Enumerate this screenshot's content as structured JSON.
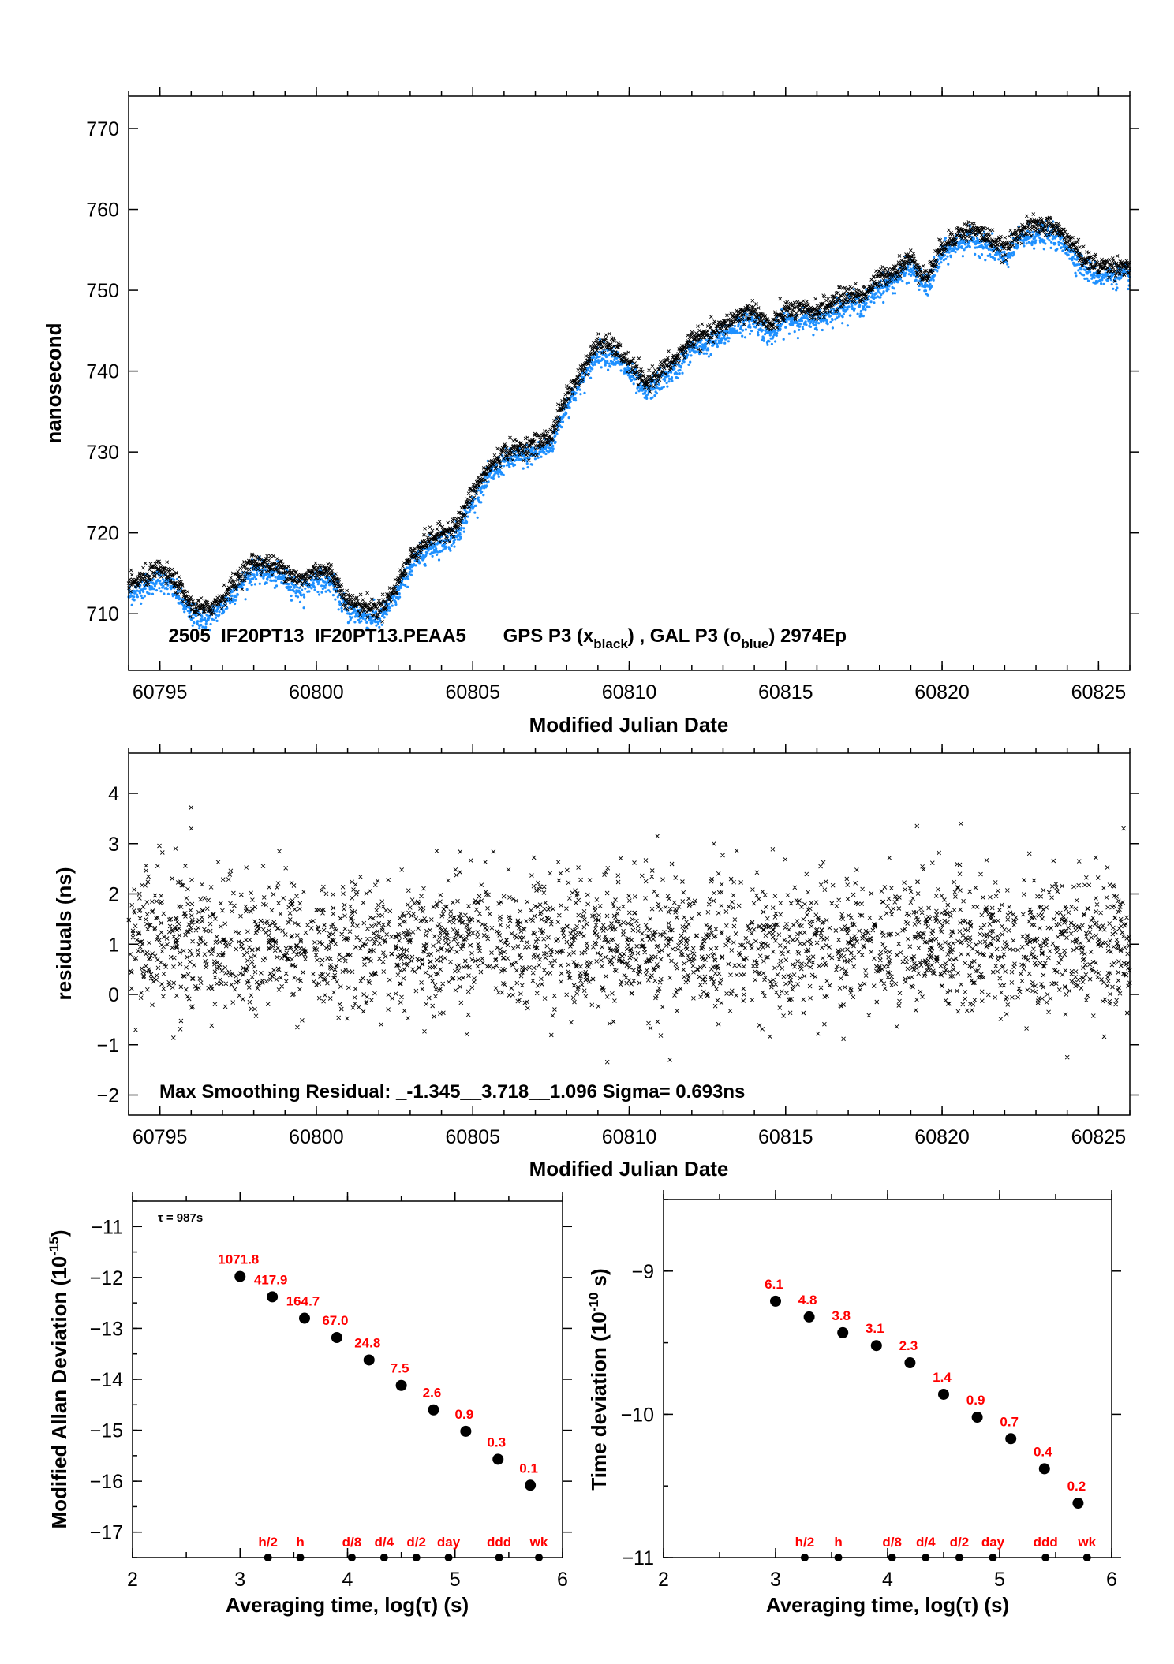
{
  "chart_data": [
    {
      "type": "scatter",
      "name": "phase",
      "xlabel": "Modified Julian Date",
      "ylabel": "nanosecond",
      "xlim": [
        60794,
        60826
      ],
      "ylim": [
        703,
        774
      ],
      "xticks": [
        "60795",
        "60800",
        "60805",
        "60810",
        "60815",
        "60820",
        "60825"
      ],
      "yticks": [
        "710",
        "720",
        "730",
        "740",
        "750",
        "760",
        "770"
      ],
      "annotation": {
        "id": "_2505_IF20PT13_IF20PT13.PEAA5",
        "gps": "GPS P3 (x",
        "gps_sub": "black",
        "mid": ") ,  GAL P3 (o",
        "gal_sub": "blue",
        "tail": ")  2974Ep"
      },
      "colors": {
        "gps": "#000000",
        "gal": "#1e90ff"
      },
      "trend_x": [
        60794,
        60794.5,
        60795,
        60795.5,
        60796,
        60796.5,
        60797,
        60797.5,
        60798,
        60798.5,
        60799,
        60799.5,
        60800,
        60800.5,
        60801,
        60801.5,
        60802,
        60802.5,
        60803,
        60803.5,
        60804,
        60804.5,
        60805,
        60805.5,
        60806,
        60806.5,
        60807,
        60807.5,
        60808,
        60808.5,
        60809,
        60809.5,
        60810,
        60810.5,
        60811,
        60811.5,
        60812,
        60812.5,
        60813,
        60813.5,
        60814,
        60814.5,
        60815,
        60815.5,
        60816,
        60816.5,
        60817,
        60817.5,
        60818,
        60818.5,
        60819,
        60819.5,
        60820,
        60820.5,
        60821,
        60821.5,
        60822,
        60822.5,
        60823,
        60823.5,
        60824,
        60824.5,
        60825,
        60825.5,
        60826
      ],
      "trend_y": [
        713.5,
        714.5,
        715.5,
        714,
        711,
        710.5,
        712,
        714.5,
        716.5,
        716,
        715.5,
        714,
        715.5,
        715,
        711.5,
        711,
        710.5,
        713,
        717,
        719,
        720,
        721,
        725,
        728,
        730,
        730.5,
        731,
        732,
        737,
        740,
        743.5,
        743,
        741,
        738.5,
        740,
        741.5,
        744,
        744.5,
        745.5,
        747,
        747.5,
        745.5,
        747.5,
        747.5,
        747.5,
        748.5,
        749.5,
        749.5,
        751.5,
        752.5,
        754,
        751.5,
        755.5,
        757,
        757.5,
        756.5,
        755,
        757.5,
        758,
        758,
        756.5,
        754,
        753,
        753,
        753
      ],
      "gal_offset": -1.2
    },
    {
      "type": "scatter",
      "name": "residuals",
      "xlabel": "Modified Julian Date",
      "ylabel": "residuals (ns)",
      "xlim": [
        60794,
        60826
      ],
      "ylim": [
        -2.4,
        4.8
      ],
      "xticks": [
        "60795",
        "60800",
        "60805",
        "60810",
        "60815",
        "60820",
        "60825"
      ],
      "yticks": [
        "−2",
        "−1",
        "0",
        "1",
        "2",
        "3",
        "4"
      ],
      "annotation": "Max Smoothing Residual: _-1.345__3.718__1.096  Sigma= 0.693ns",
      "mean": 1.0,
      "sigma": 0.693,
      "min": -1.345,
      "max": 3.718,
      "outliers": [
        [
          60796,
          3.718
        ],
        [
          60796,
          3.3
        ],
        [
          60795.5,
          2.9
        ],
        [
          60809.3,
          -1.345
        ],
        [
          60811.3,
          -1.3
        ],
        [
          60824,
          -1.25
        ],
        [
          60810.9,
          3.15
        ],
        [
          60819.2,
          3.35
        ],
        [
          60820.6,
          3.4
        ],
        [
          60825.8,
          3.3
        ]
      ]
    },
    {
      "type": "scatter",
      "name": "modified-allan-deviation",
      "xlabel": "Averaging time, log(τ) (s)",
      "ylabel": "Modified Allan Deviation (10",
      "ylabel_sup": "-15",
      "ylabel_tail": ")",
      "xlim": [
        2,
        6
      ],
      "ylim": [
        -17.5,
        -10.5
      ],
      "xticks": [
        "2",
        "3",
        "4",
        "5",
        "6"
      ],
      "yticks": [
        "−11",
        "−12",
        "−13",
        "−14",
        "−15",
        "−16",
        "−17"
      ],
      "tau_note": "τ = 987s",
      "x": [
        3.0,
        3.3,
        3.6,
        3.9,
        4.2,
        4.5,
        4.8,
        5.1,
        5.4,
        5.7
      ],
      "y": [
        -11.98,
        -12.38,
        -12.8,
        -13.18,
        -13.62,
        -14.12,
        -14.6,
        -15.02,
        -15.57,
        -16.08
      ],
      "labels": [
        "1071.8",
        "417.9",
        "164.7",
        "67.0",
        "24.8",
        "7.5",
        "2.6",
        "0.9",
        "0.3",
        "0.1"
      ],
      "markers": {
        "x": [
          3.26,
          3.56,
          4.04,
          4.34,
          4.64,
          4.94,
          5.41,
          5.78
        ],
        "labels": [
          "h/2",
          "h",
          "d/8",
          "d/4",
          "d/2",
          "day",
          "ddd",
          "wk"
        ]
      }
    },
    {
      "type": "scatter",
      "name": "time-deviation",
      "xlabel": "Averaging time, log(τ) (s)",
      "ylabel": "Time deviation (10",
      "ylabel_sup": "-10",
      "ylabel_tail": " s)",
      "xlim": [
        2,
        6
      ],
      "ylim": [
        -11,
        -8.5
      ],
      "xticks": [
        "2",
        "3",
        "4",
        "5",
        "6"
      ],
      "yticks": [
        "−9",
        "−10",
        "−11"
      ],
      "x": [
        3.0,
        3.3,
        3.6,
        3.9,
        4.2,
        4.5,
        4.8,
        5.1,
        5.4,
        5.7
      ],
      "y": [
        -9.21,
        -9.32,
        -9.43,
        -9.52,
        -9.64,
        -9.86,
        -10.02,
        -10.17,
        -10.38,
        -10.62
      ],
      "labels": [
        "6.1",
        "4.8",
        "3.8",
        "3.1",
        "2.3",
        "1.4",
        "0.9",
        "0.7",
        "0.4",
        "0.2"
      ],
      "markers": {
        "x": [
          3.26,
          3.56,
          4.04,
          4.34,
          4.64,
          4.94,
          5.41,
          5.78
        ],
        "labels": [
          "h/2",
          "h",
          "d/8",
          "d/4",
          "d/2",
          "day",
          "ddd",
          "wk"
        ]
      }
    }
  ]
}
